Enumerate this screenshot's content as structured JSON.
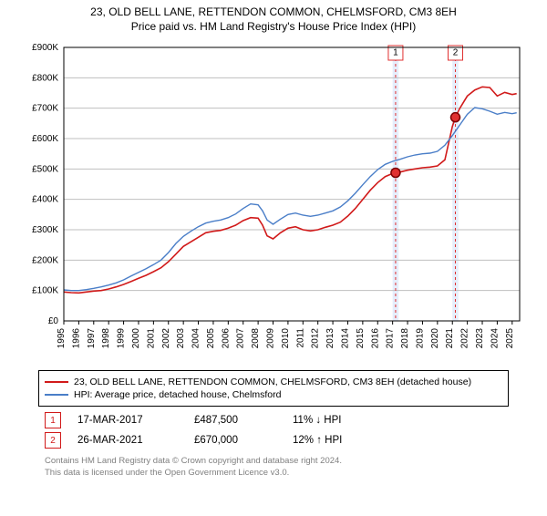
{
  "title_line1": "23, OLD BELL LANE, RETTENDON COMMON, CHELMSFORD, CM3 8EH",
  "title_line2": "Price paid vs. HM Land Registry's House Price Index (HPI)",
  "chart": {
    "type": "line",
    "background_color": "#ffffff",
    "grid_color": "#bfbfbf",
    "shade_color": "#e6eefc",
    "axis_color": "#000000",
    "label_fontsize": 10,
    "xlim": [
      1995,
      2025.5
    ],
    "ylim": [
      0,
      900000
    ],
    "ytick_step": 100000,
    "ytick_labels": [
      "£0",
      "£100K",
      "£200K",
      "£300K",
      "£400K",
      "£500K",
      "£600K",
      "£700K",
      "£800K",
      "£900K"
    ],
    "xtick_years": [
      1995,
      1996,
      1997,
      1998,
      1999,
      2000,
      2001,
      2002,
      2003,
      2004,
      2005,
      2006,
      2007,
      2008,
      2009,
      2010,
      2011,
      2012,
      2013,
      2014,
      2015,
      2016,
      2017,
      2018,
      2019,
      2020,
      2021,
      2022,
      2023,
      2024,
      2025
    ],
    "shaded_bands": [
      {
        "start": 2017.0,
        "end": 2017.4
      },
      {
        "start": 2021.0,
        "end": 2021.4
      }
    ],
    "dash_color": "#e03030",
    "series": [
      {
        "name": "23, OLD BELL LANE, RETTENDON COMMON, CHELMSFORD, CM3 8EH (detached house)",
        "color": "#d11a1a",
        "data": [
          [
            1995.0,
            95000
          ],
          [
            1995.5,
            93000
          ],
          [
            1996.0,
            92000
          ],
          [
            1996.5,
            95000
          ],
          [
            1997.0,
            98000
          ],
          [
            1997.5,
            100000
          ],
          [
            1998.0,
            105000
          ],
          [
            1998.5,
            112000
          ],
          [
            1999.0,
            120000
          ],
          [
            1999.5,
            130000
          ],
          [
            2000.0,
            140000
          ],
          [
            2000.5,
            150000
          ],
          [
            2001.0,
            162000
          ],
          [
            2001.5,
            175000
          ],
          [
            2002.0,
            195000
          ],
          [
            2002.5,
            220000
          ],
          [
            2003.0,
            245000
          ],
          [
            2003.5,
            260000
          ],
          [
            2004.0,
            275000
          ],
          [
            2004.5,
            290000
          ],
          [
            2005.0,
            295000
          ],
          [
            2005.5,
            298000
          ],
          [
            2006.0,
            305000
          ],
          [
            2006.5,
            315000
          ],
          [
            2007.0,
            330000
          ],
          [
            2007.5,
            340000
          ],
          [
            2008.0,
            338000
          ],
          [
            2008.3,
            315000
          ],
          [
            2008.6,
            280000
          ],
          [
            2009.0,
            270000
          ],
          [
            2009.5,
            290000
          ],
          [
            2010.0,
            305000
          ],
          [
            2010.5,
            310000
          ],
          [
            2011.0,
            300000
          ],
          [
            2011.5,
            296000
          ],
          [
            2012.0,
            300000
          ],
          [
            2012.5,
            308000
          ],
          [
            2013.0,
            315000
          ],
          [
            2013.5,
            325000
          ],
          [
            2014.0,
            345000
          ],
          [
            2014.5,
            370000
          ],
          [
            2015.0,
            400000
          ],
          [
            2015.5,
            430000
          ],
          [
            2016.0,
            455000
          ],
          [
            2016.5,
            475000
          ],
          [
            2017.0,
            485000
          ],
          [
            2017.2,
            487500
          ],
          [
            2017.5,
            490000
          ],
          [
            2018.0,
            496000
          ],
          [
            2018.5,
            500000
          ],
          [
            2019.0,
            504000
          ],
          [
            2019.5,
            506000
          ],
          [
            2020.0,
            510000
          ],
          [
            2020.5,
            530000
          ],
          [
            2021.0,
            640000
          ],
          [
            2021.2,
            670000
          ],
          [
            2021.5,
            700000
          ],
          [
            2022.0,
            740000
          ],
          [
            2022.5,
            760000
          ],
          [
            2023.0,
            770000
          ],
          [
            2023.5,
            768000
          ],
          [
            2024.0,
            740000
          ],
          [
            2024.5,
            752000
          ],
          [
            2025.0,
            745000
          ],
          [
            2025.3,
            748000
          ]
        ]
      },
      {
        "name": "HPI: Average price, detached house, Chelmsford",
        "color": "#4a7ec8",
        "data": [
          [
            1995.0,
            102000
          ],
          [
            1995.5,
            100000
          ],
          [
            1996.0,
            100000
          ],
          [
            1996.5,
            103000
          ],
          [
            1997.0,
            107000
          ],
          [
            1997.5,
            112000
          ],
          [
            1998.0,
            118000
          ],
          [
            1998.5,
            125000
          ],
          [
            1999.0,
            135000
          ],
          [
            1999.5,
            148000
          ],
          [
            2000.0,
            160000
          ],
          [
            2000.5,
            172000
          ],
          [
            2001.0,
            185000
          ],
          [
            2001.5,
            200000
          ],
          [
            2002.0,
            225000
          ],
          [
            2002.5,
            255000
          ],
          [
            2003.0,
            278000
          ],
          [
            2003.5,
            295000
          ],
          [
            2004.0,
            310000
          ],
          [
            2004.5,
            322000
          ],
          [
            2005.0,
            328000
          ],
          [
            2005.5,
            332000
          ],
          [
            2006.0,
            340000
          ],
          [
            2006.5,
            352000
          ],
          [
            2007.0,
            370000
          ],
          [
            2007.5,
            385000
          ],
          [
            2008.0,
            382000
          ],
          [
            2008.3,
            362000
          ],
          [
            2008.6,
            332000
          ],
          [
            2009.0,
            318000
          ],
          [
            2009.5,
            335000
          ],
          [
            2010.0,
            350000
          ],
          [
            2010.5,
            355000
          ],
          [
            2011.0,
            348000
          ],
          [
            2011.5,
            344000
          ],
          [
            2012.0,
            348000
          ],
          [
            2012.5,
            355000
          ],
          [
            2013.0,
            362000
          ],
          [
            2013.5,
            375000
          ],
          [
            2014.0,
            395000
          ],
          [
            2014.5,
            420000
          ],
          [
            2015.0,
            448000
          ],
          [
            2015.5,
            475000
          ],
          [
            2016.0,
            498000
          ],
          [
            2016.5,
            515000
          ],
          [
            2017.0,
            525000
          ],
          [
            2017.5,
            532000
          ],
          [
            2018.0,
            540000
          ],
          [
            2018.5,
            546000
          ],
          [
            2019.0,
            550000
          ],
          [
            2019.5,
            552000
          ],
          [
            2020.0,
            558000
          ],
          [
            2020.5,
            578000
          ],
          [
            2021.0,
            610000
          ],
          [
            2021.5,
            645000
          ],
          [
            2022.0,
            680000
          ],
          [
            2022.5,
            702000
          ],
          [
            2023.0,
            698000
          ],
          [
            2023.5,
            690000
          ],
          [
            2024.0,
            680000
          ],
          [
            2024.5,
            686000
          ],
          [
            2025.0,
            682000
          ],
          [
            2025.3,
            685000
          ]
        ]
      }
    ],
    "sale_points": [
      {
        "x": 2017.2,
        "y": 487500,
        "label": "1"
      },
      {
        "x": 2021.2,
        "y": 670000,
        "label": "2"
      }
    ],
    "point_fill": "#e03030",
    "point_stroke": "#7a0000"
  },
  "legend": {
    "items": [
      {
        "color": "#d11a1a",
        "text": "23, OLD BELL LANE, RETTENDON COMMON, CHELMSFORD, CM3 8EH (detached house)"
      },
      {
        "color": "#4a7ec8",
        "text": "HPI: Average price, detached house, Chelmsford"
      }
    ]
  },
  "sales": [
    {
      "marker": "1",
      "marker_color": "#d11a1a",
      "date": "17-MAR-2017",
      "price": "£487,500",
      "delta": "11% ↓ HPI"
    },
    {
      "marker": "2",
      "marker_color": "#d11a1a",
      "date": "26-MAR-2021",
      "price": "£670,000",
      "delta": "12% ↑ HPI"
    }
  ],
  "footnote": {
    "line1": "Contains HM Land Registry data © Crown copyright and database right 2024.",
    "line2": "This data is licensed under the Open Government Licence v3.0."
  }
}
